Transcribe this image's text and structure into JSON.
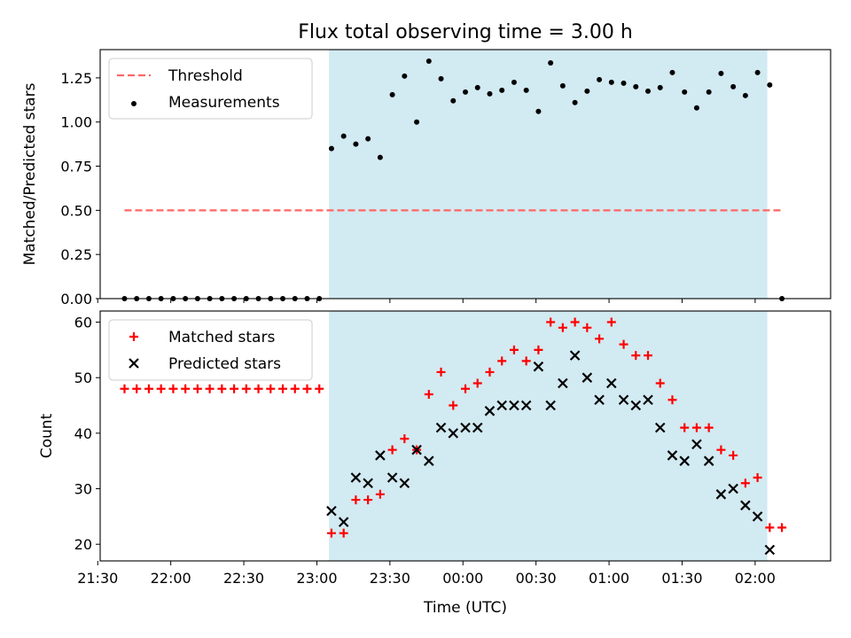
{
  "chart_data": [
    {
      "type": "scatter",
      "title": "Flux total observing time = 3.00 h",
      "xlabel": "",
      "ylabel": "Matched/Predicted stars",
      "ylim": [
        0,
        1.41
      ],
      "yticks": [
        "0.00",
        "0.25",
        "0.50",
        "0.75",
        "1.00",
        "1.25"
      ],
      "ytick_values": [
        0,
        0.25,
        0.5,
        0.75,
        1.0,
        1.25
      ],
      "xlim": [
        "21:31",
        "02:31"
      ],
      "shaded_region": {
        "from": "23:05",
        "to": "02:05",
        "color": "#add8e6"
      },
      "legend_position": "upper-left",
      "series": [
        {
          "name": "Threshold",
          "style": "dashed-line",
          "color": "#ff6666",
          "x": [
            "21:41",
            "02:11"
          ],
          "values": [
            0.5,
            0.5
          ]
        },
        {
          "name": "Measurements",
          "style": "dot",
          "color": "#000000",
          "x": [
            "21:41",
            "21:46",
            "21:51",
            "21:56",
            "22:01",
            "22:06",
            "22:11",
            "22:16",
            "22:21",
            "22:26",
            "22:31",
            "22:36",
            "22:41",
            "22:46",
            "22:51",
            "22:56",
            "23:01",
            "23:06",
            "23:11",
            "23:16",
            "23:21",
            "23:26",
            "23:31",
            "23:36",
            "23:41",
            "23:46",
            "23:51",
            "23:56",
            "00:01",
            "00:06",
            "00:11",
            "00:16",
            "00:21",
            "00:26",
            "00:31",
            "00:36",
            "00:41",
            "00:46",
            "00:51",
            "00:56",
            "01:01",
            "01:06",
            "01:11",
            "01:16",
            "01:21",
            "01:26",
            "01:31",
            "01:36",
            "01:41",
            "01:46",
            "01:51",
            "01:56",
            "02:01",
            "02:06",
            "02:11"
          ],
          "values": [
            0,
            0,
            0,
            0,
            0,
            0,
            0,
            0,
            0,
            0,
            0,
            0,
            0,
            0,
            0,
            0,
            0,
            0.85,
            0.92,
            0.875,
            0.905,
            0.8,
            1.155,
            1.26,
            1.0,
            1.345,
            1.245,
            1.12,
            1.17,
            1.195,
            1.16,
            1.18,
            1.225,
            1.18,
            1.06,
            1.335,
            1.205,
            1.11,
            1.175,
            1.24,
            1.225,
            1.22,
            1.2,
            1.175,
            1.195,
            1.28,
            1.17,
            1.08,
            1.17,
            1.275,
            1.2,
            1.15,
            1.28,
            1.21,
            0
          ]
        }
      ]
    },
    {
      "type": "scatter",
      "title": "",
      "xlabel": "Time (UTC)",
      "ylabel": "Count",
      "ylim": [
        17,
        62
      ],
      "yticks": [
        "20",
        "30",
        "40",
        "50",
        "60"
      ],
      "ytick_values": [
        20,
        30,
        40,
        50,
        60
      ],
      "xlim": [
        "21:31",
        "02:31"
      ],
      "xticks": [
        "21:30",
        "22:00",
        "22:30",
        "23:00",
        "23:30",
        "00:00",
        "00:30",
        "01:00",
        "01:30",
        "02:00"
      ],
      "shaded_region": {
        "from": "23:05",
        "to": "02:05",
        "color": "#add8e6"
      },
      "legend_position": "upper-left",
      "series": [
        {
          "name": "Matched stars",
          "style": "plus",
          "color": "#ff0000",
          "x": [
            "21:41",
            "21:46",
            "21:51",
            "21:56",
            "22:01",
            "22:06",
            "22:11",
            "22:16",
            "22:21",
            "22:26",
            "22:31",
            "22:36",
            "22:41",
            "22:46",
            "22:51",
            "22:56",
            "23:01",
            "23:06",
            "23:11",
            "23:16",
            "23:21",
            "23:26",
            "23:31",
            "23:36",
            "23:41",
            "23:46",
            "23:51",
            "23:56",
            "00:01",
            "00:06",
            "00:11",
            "00:16",
            "00:21",
            "00:26",
            "00:31",
            "00:36",
            "00:41",
            "00:46",
            "00:51",
            "00:56",
            "01:01",
            "01:06",
            "01:11",
            "01:16",
            "01:21",
            "01:26",
            "01:31",
            "01:36",
            "01:41",
            "01:46",
            "01:51",
            "01:56",
            "02:01",
            "02:06",
            "02:11"
          ],
          "values": [
            48,
            48,
            48,
            48,
            48,
            48,
            48,
            48,
            48,
            48,
            48,
            48,
            48,
            48,
            48,
            48,
            48,
            22,
            22,
            28,
            28,
            29,
            37,
            39,
            37,
            47,
            51,
            45,
            48,
            49,
            51,
            53,
            55,
            53,
            55,
            60,
            59,
            60,
            59,
            57,
            60,
            56,
            54,
            54,
            49,
            46,
            41,
            41,
            41,
            37,
            36,
            31,
            32,
            23,
            23
          ]
        },
        {
          "name": "Predicted stars",
          "style": "x",
          "color": "#000000",
          "x": [
            "23:06",
            "23:11",
            "23:16",
            "23:21",
            "23:26",
            "23:31",
            "23:36",
            "23:41",
            "23:46",
            "23:51",
            "23:56",
            "00:01",
            "00:06",
            "00:11",
            "00:16",
            "00:21",
            "00:26",
            "00:31",
            "00:36",
            "00:41",
            "00:46",
            "00:51",
            "00:56",
            "01:01",
            "01:06",
            "01:11",
            "01:16",
            "01:21",
            "01:26",
            "01:31",
            "01:36",
            "01:41",
            "01:46",
            "01:51",
            "01:56",
            "02:01",
            "02:06"
          ],
          "values": [
            26,
            24,
            32,
            31,
            36,
            32,
            31,
            37,
            35,
            41,
            40,
            41,
            41,
            44,
            45,
            45,
            45,
            52,
            45,
            49,
            54,
            50,
            46,
            49,
            46,
            45,
            46,
            41,
            36,
            35,
            38,
            35,
            29,
            30,
            27,
            25,
            19
          ]
        }
      ]
    }
  ]
}
